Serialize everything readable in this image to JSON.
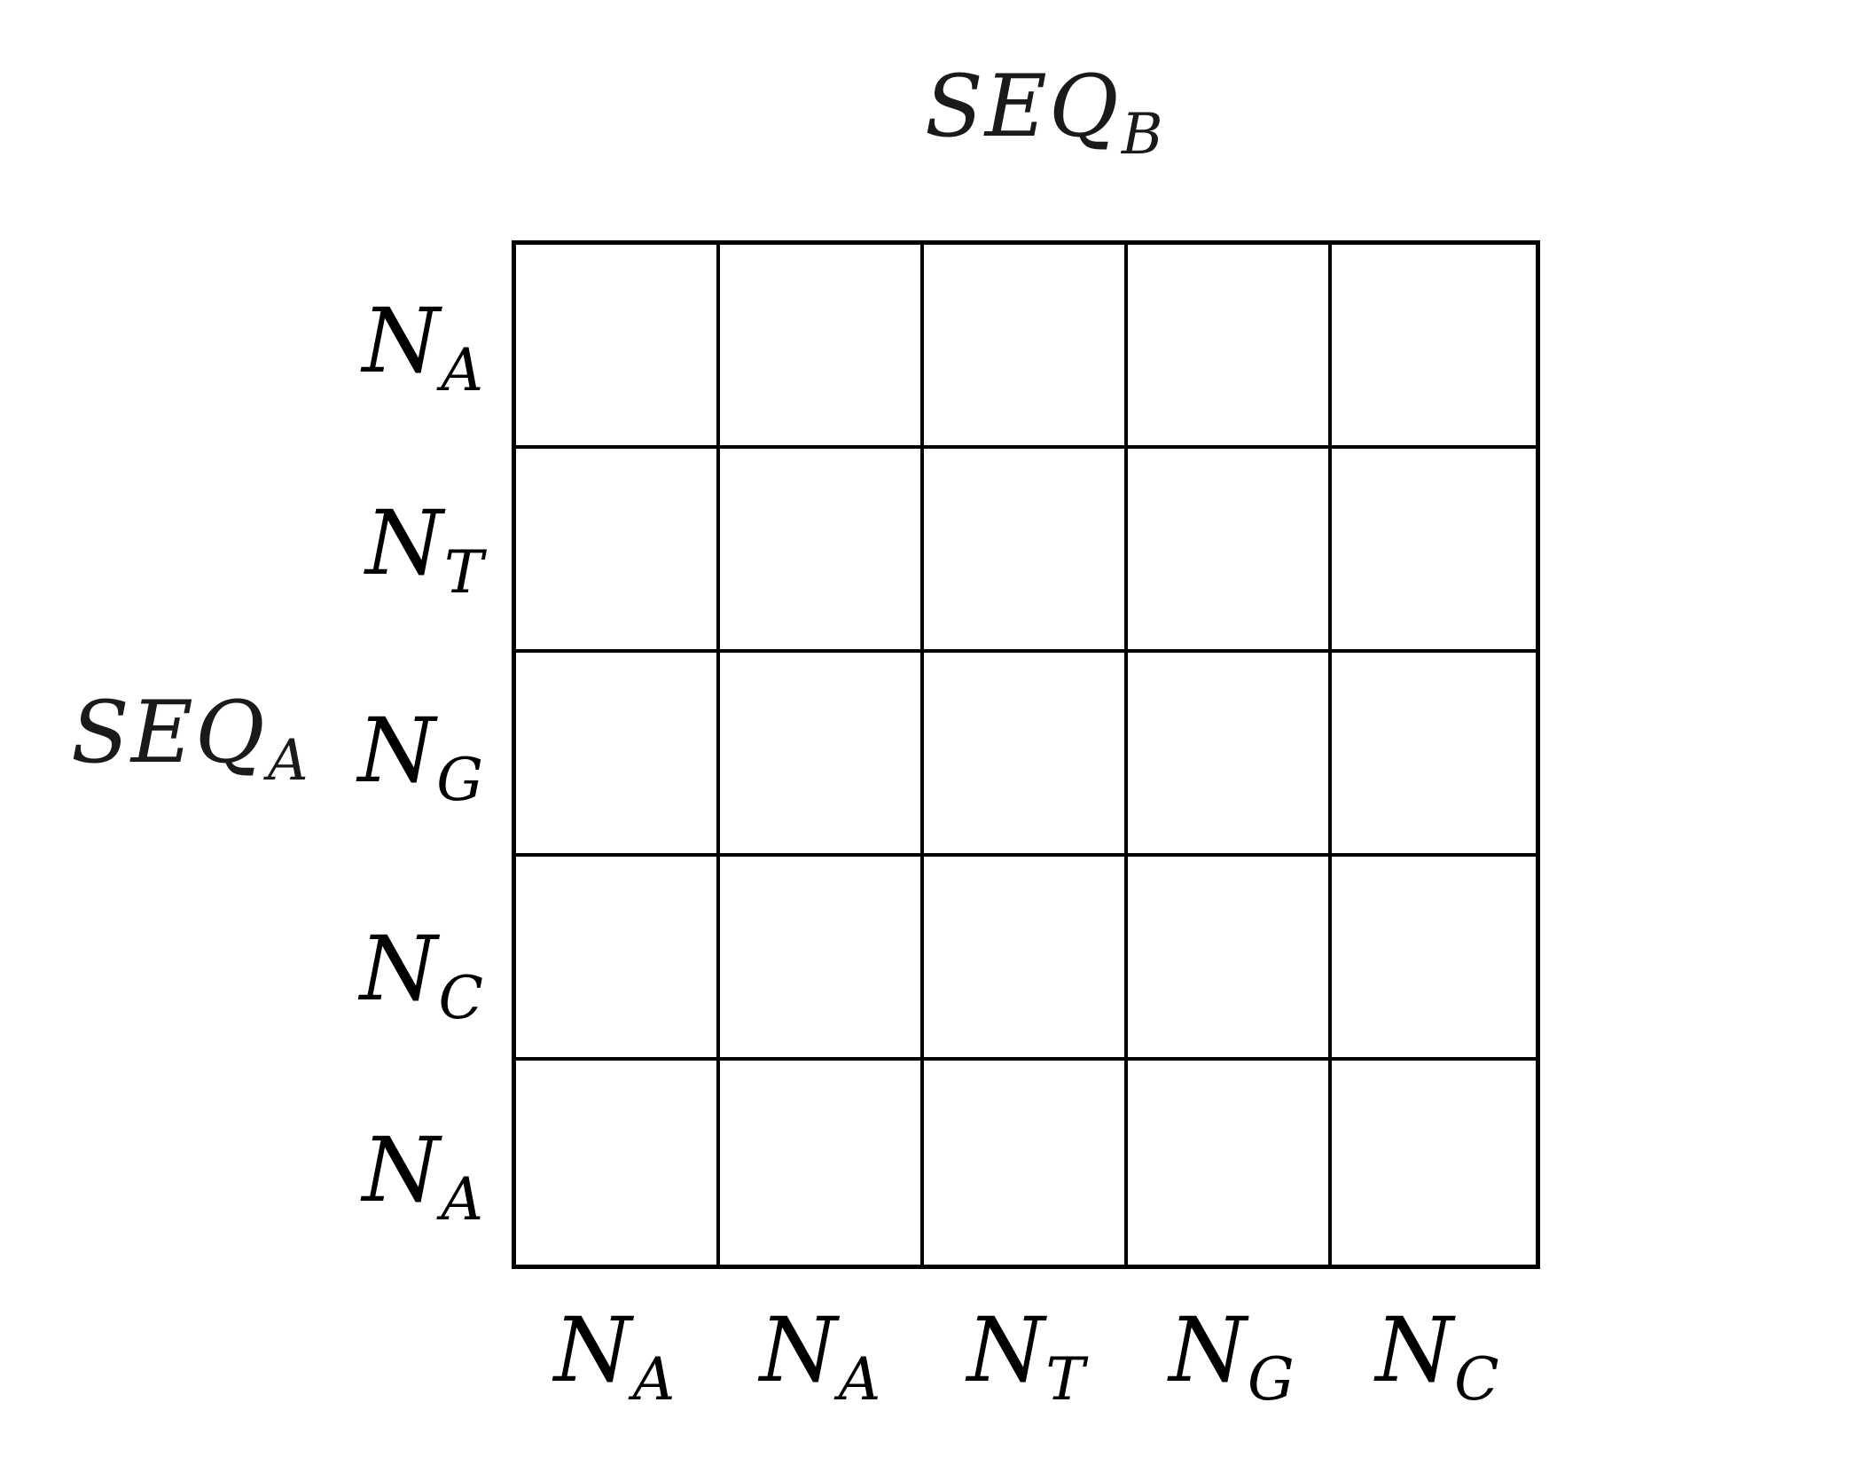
{
  "seq_b": {
    "base": "SEQ",
    "sub": "B"
  },
  "seq_a": {
    "base": "SEQ",
    "sub": "A"
  },
  "row_labels": [
    {
      "base": "N",
      "sub": "A"
    },
    {
      "base": "N",
      "sub": "T"
    },
    {
      "base": "N",
      "sub": "G"
    },
    {
      "base": "N",
      "sub": "C"
    },
    {
      "base": "N",
      "sub": "A"
    }
  ],
  "column_labels": [
    {
      "base": "N",
      "sub": "A"
    },
    {
      "base": "N",
      "sub": "A"
    },
    {
      "base": "N",
      "sub": "T"
    },
    {
      "base": "N",
      "sub": "G"
    },
    {
      "base": "N",
      "sub": "C"
    }
  ],
  "grid": {
    "rows": 5,
    "columns": 5
  },
  "colors": {
    "line": "#000000",
    "background": "#ffffff"
  }
}
